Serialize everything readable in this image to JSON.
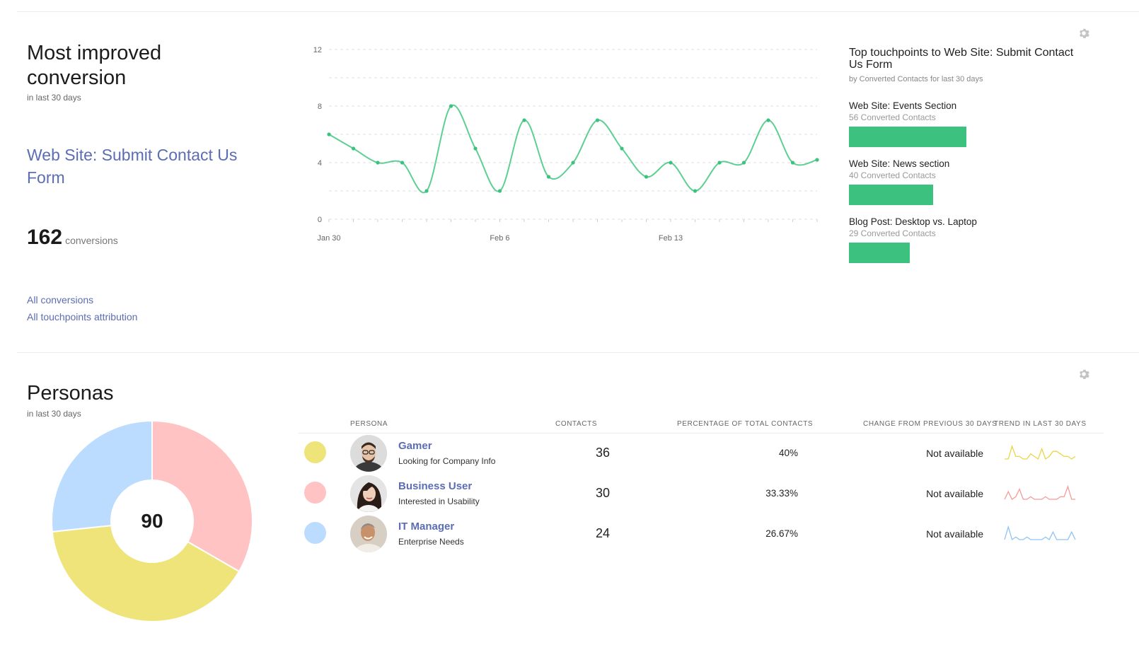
{
  "top": {
    "title": "Most improved conversion",
    "subtitle": "in last 30 days",
    "target_link": "Web Site: Submit Contact Us Form",
    "conversions_count": "162",
    "conversions_label": "conversions",
    "links": [
      "All conversions",
      "All touchpoints attribution"
    ],
    "settings_icon": "gear-icon"
  },
  "chart_data": {
    "type": "line",
    "x": [
      "Jan 30",
      "Jan 31",
      "Feb 1",
      "Feb 2",
      "Feb 3",
      "Feb 4",
      "Feb 5",
      "Feb 6",
      "Feb 7",
      "Feb 8",
      "Feb 9",
      "Feb 10",
      "Feb 11",
      "Feb 12",
      "Feb 13",
      "Feb 14",
      "Feb 15",
      "Feb 16",
      "Feb 17",
      "Feb 18",
      "Feb 19"
    ],
    "series": [
      {
        "values": [
          6,
          5,
          4,
          4,
          2,
          8,
          5,
          2,
          7,
          3,
          4,
          7,
          5,
          3,
          4,
          2,
          4,
          4,
          7,
          4,
          4.2
        ],
        "color": "#5dcf92"
      }
    ],
    "x_tick_labels": [
      "Jan 30",
      "Feb 6",
      "Feb 13"
    ],
    "y_ticks": [
      "0",
      "4",
      "8",
      "12"
    ],
    "ylim": [
      0,
      12
    ],
    "grid": true
  },
  "touchpoints": {
    "title": "Top touchpoints to Web Site: Submit Contact Us Form",
    "subtitle": "by Converted Contacts for last 30 days",
    "bar_color": "#3cc27e",
    "items": [
      {
        "name": "Web Site: Events Section",
        "count_label": "56 Converted Contacts",
        "value": 56
      },
      {
        "name": "Web Site: News section",
        "count_label": "40 Converted Contacts",
        "value": 40
      },
      {
        "name": "Blog Post: Desktop vs. Laptop",
        "count_label": "29 Converted Contacts",
        "value": 29
      }
    ]
  },
  "personas": {
    "title": "Personas",
    "subtitle": "in last 30 days",
    "total": "90",
    "settings_icon": "gear-icon",
    "headers": {
      "persona": "PERSONA",
      "contacts": "CONTACTS",
      "percentage": "PERCENTAGE OF TOTAL CONTACTS",
      "change": "CHANGE FROM PREVIOUS 30 DAYS",
      "trend": "TREND IN LAST 30 DAYS"
    },
    "rows": [
      {
        "name": "Gamer",
        "desc": "Looking for Company Info",
        "contacts": "36",
        "value": 36,
        "percentage": "40%",
        "change": "Not available",
        "color": "#efe47a",
        "trend": [
          3,
          3,
          8,
          4,
          4,
          3,
          3,
          5,
          4,
          3,
          7,
          3,
          4,
          6,
          6,
          5,
          4,
          4,
          3,
          4
        ]
      },
      {
        "name": "Business User",
        "desc": "Interested in Usability",
        "contacts": "30",
        "value": 30,
        "percentage": "33.33%",
        "change": "Not available",
        "color": "#ffc3c3",
        "trend": [
          3,
          6,
          3,
          4,
          7,
          3,
          3,
          4,
          3,
          3,
          3,
          4,
          3,
          3,
          3,
          4,
          4,
          8,
          3,
          3
        ]
      },
      {
        "name": "IT Manager",
        "desc": "Enterprise Needs",
        "contacts": "24",
        "value": 24,
        "percentage": "26.67%",
        "change": "Not available",
        "color": "#bcdcff",
        "trend": [
          3,
          8,
          3,
          4,
          3,
          3,
          4,
          3,
          3,
          3,
          3,
          4,
          3,
          6,
          3,
          3,
          3,
          3,
          6,
          3
        ]
      }
    ]
  }
}
